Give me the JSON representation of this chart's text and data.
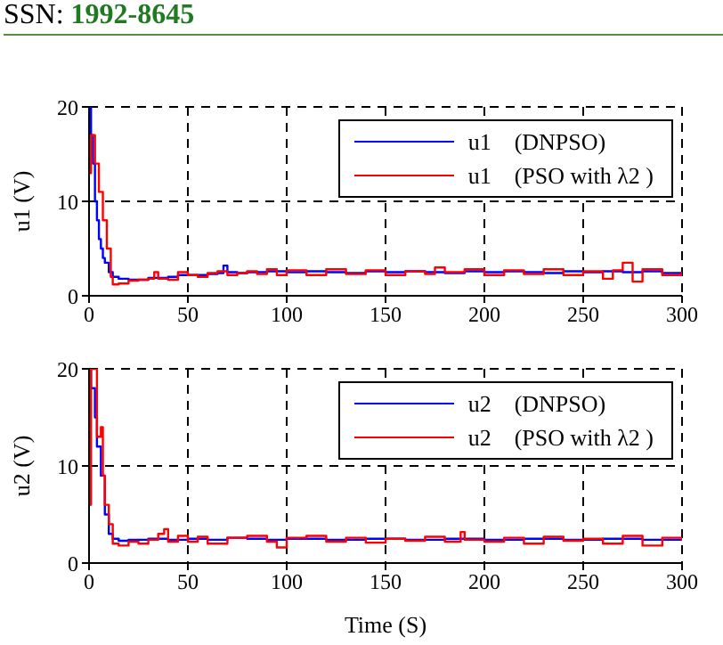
{
  "chart_data": [
    {
      "type": "step",
      "annotations": [
        "SSN: 1992-8645"
      ],
      "ylabel": "u1 (V)",
      "xlim": [
        0,
        300
      ],
      "xticks": [
        0,
        50,
        100,
        150,
        200,
        250,
        300
      ],
      "ylim": [
        0,
        20
      ],
      "yticks": [
        0,
        10,
        20
      ],
      "grid": true,
      "legend": "top right",
      "marker": "none",
      "line_style": "solid",
      "series": [
        {
          "name": "u1    (DNPSO)",
          "color": "#0000ff",
          "x": [
            0,
            1,
            2,
            3,
            4,
            5,
            6,
            7,
            8,
            10,
            12,
            15,
            20,
            25,
            30,
            35,
            40,
            45,
            50,
            55,
            60,
            65,
            68,
            70,
            75,
            80,
            90,
            100,
            110,
            120,
            130,
            140,
            150,
            160,
            170,
            180,
            190,
            200,
            210,
            220,
            230,
            240,
            250,
            260,
            270,
            280,
            290,
            300
          ],
          "values": [
            20,
            17,
            14,
            10,
            8,
            6,
            5,
            4,
            3.5,
            2.5,
            2,
            1.8,
            1.7,
            1.7,
            1.9,
            1.9,
            2.0,
            2.2,
            2.2,
            2.2,
            2.3,
            2.4,
            3.2,
            2.5,
            2.4,
            2.5,
            2.6,
            2.5,
            2.6,
            2.5,
            2.4,
            2.6,
            2.5,
            2.6,
            2.5,
            2.4,
            2.6,
            2.5,
            2.6,
            2.5,
            2.4,
            2.6,
            2.5,
            2.6,
            2.5,
            2.6,
            2.4,
            2.5
          ]
        },
        {
          "name": "u1    (PSO with λ2 )",
          "color": "#ff0000",
          "x": [
            0,
            1,
            3,
            5,
            7,
            9,
            11,
            12,
            15,
            20,
            25,
            30,
            33,
            35,
            40,
            45,
            50,
            55,
            60,
            65,
            70,
            75,
            80,
            85,
            90,
            95,
            100,
            110,
            120,
            130,
            140,
            150,
            160,
            170,
            175,
            180,
            190,
            200,
            210,
            220,
            230,
            240,
            250,
            260,
            265,
            270,
            275,
            280,
            290,
            300
          ],
          "values": [
            13,
            17,
            14,
            11,
            8,
            5,
            2,
            1.2,
            1.3,
            1.6,
            1.7,
            1.8,
            2.5,
            1.8,
            1.7,
            2.5,
            2.2,
            2.0,
            2.4,
            2.6,
            2.2,
            2.4,
            2.6,
            2.3,
            2.8,
            2.2,
            2.7,
            2.2,
            2.8,
            2.3,
            2.7,
            2.2,
            2.6,
            2.3,
            3.0,
            2.5,
            2.8,
            2.2,
            2.7,
            2.3,
            2.8,
            2.2,
            2.6,
            1.8,
            2.7,
            3.5,
            1.5,
            2.8,
            2.2,
            2.5
          ]
        }
      ]
    },
    {
      "type": "step",
      "xlabel": "Time (S)",
      "ylabel": "u2 (V)",
      "xlim": [
        0,
        300
      ],
      "xticks": [
        0,
        50,
        100,
        150,
        200,
        250,
        300
      ],
      "ylim": [
        0,
        20
      ],
      "yticks": [
        0,
        10,
        20
      ],
      "grid": true,
      "legend": "top right",
      "marker": "none",
      "line_style": "solid",
      "series": [
        {
          "name": "u2    (DNPSO)",
          "color": "#0000ff",
          "x": [
            0,
            1,
            3,
            4,
            6,
            8,
            10,
            12,
            15,
            20,
            30,
            40,
            50,
            60,
            70,
            80,
            90,
            100,
            120,
            140,
            160,
            180,
            200,
            220,
            240,
            260,
            280,
            300
          ],
          "values": [
            20,
            18,
            15,
            12,
            9,
            5,
            3,
            2.5,
            2.3,
            2.4,
            2.5,
            2.4,
            2.5,
            2.4,
            2.6,
            2.5,
            2.4,
            2.5,
            2.4,
            2.5,
            2.4,
            2.5,
            2.4,
            2.5,
            2.4,
            2.5,
            2.4,
            2.5
          ]
        },
        {
          "name": "u2    (PSO with λ2 )",
          "color": "#ff0000",
          "x": [
            0,
            1,
            3,
            4,
            6,
            7,
            8,
            10,
            12,
            15,
            20,
            25,
            30,
            35,
            38,
            40,
            45,
            50,
            55,
            60,
            70,
            80,
            90,
            95,
            100,
            110,
            120,
            130,
            140,
            150,
            160,
            170,
            180,
            188,
            190,
            200,
            210,
            220,
            230,
            240,
            250,
            260,
            270,
            280,
            290,
            300
          ],
          "values": [
            6,
            20,
            20,
            13,
            14,
            9,
            6,
            4,
            2,
            1.8,
            2.2,
            2.0,
            2.4,
            3.0,
            3.5,
            2.2,
            2.8,
            2.2,
            2.7,
            2.0,
            2.6,
            2.8,
            2.2,
            1.6,
            2.6,
            2.8,
            2.2,
            2.6,
            2.1,
            2.5,
            2.3,
            2.7,
            2.2,
            3.2,
            2.4,
            2.2,
            2.6,
            2.0,
            2.7,
            2.3,
            2.5,
            2.0,
            2.8,
            1.8,
            2.6,
            2.3
          ]
        }
      ]
    }
  ]
}
